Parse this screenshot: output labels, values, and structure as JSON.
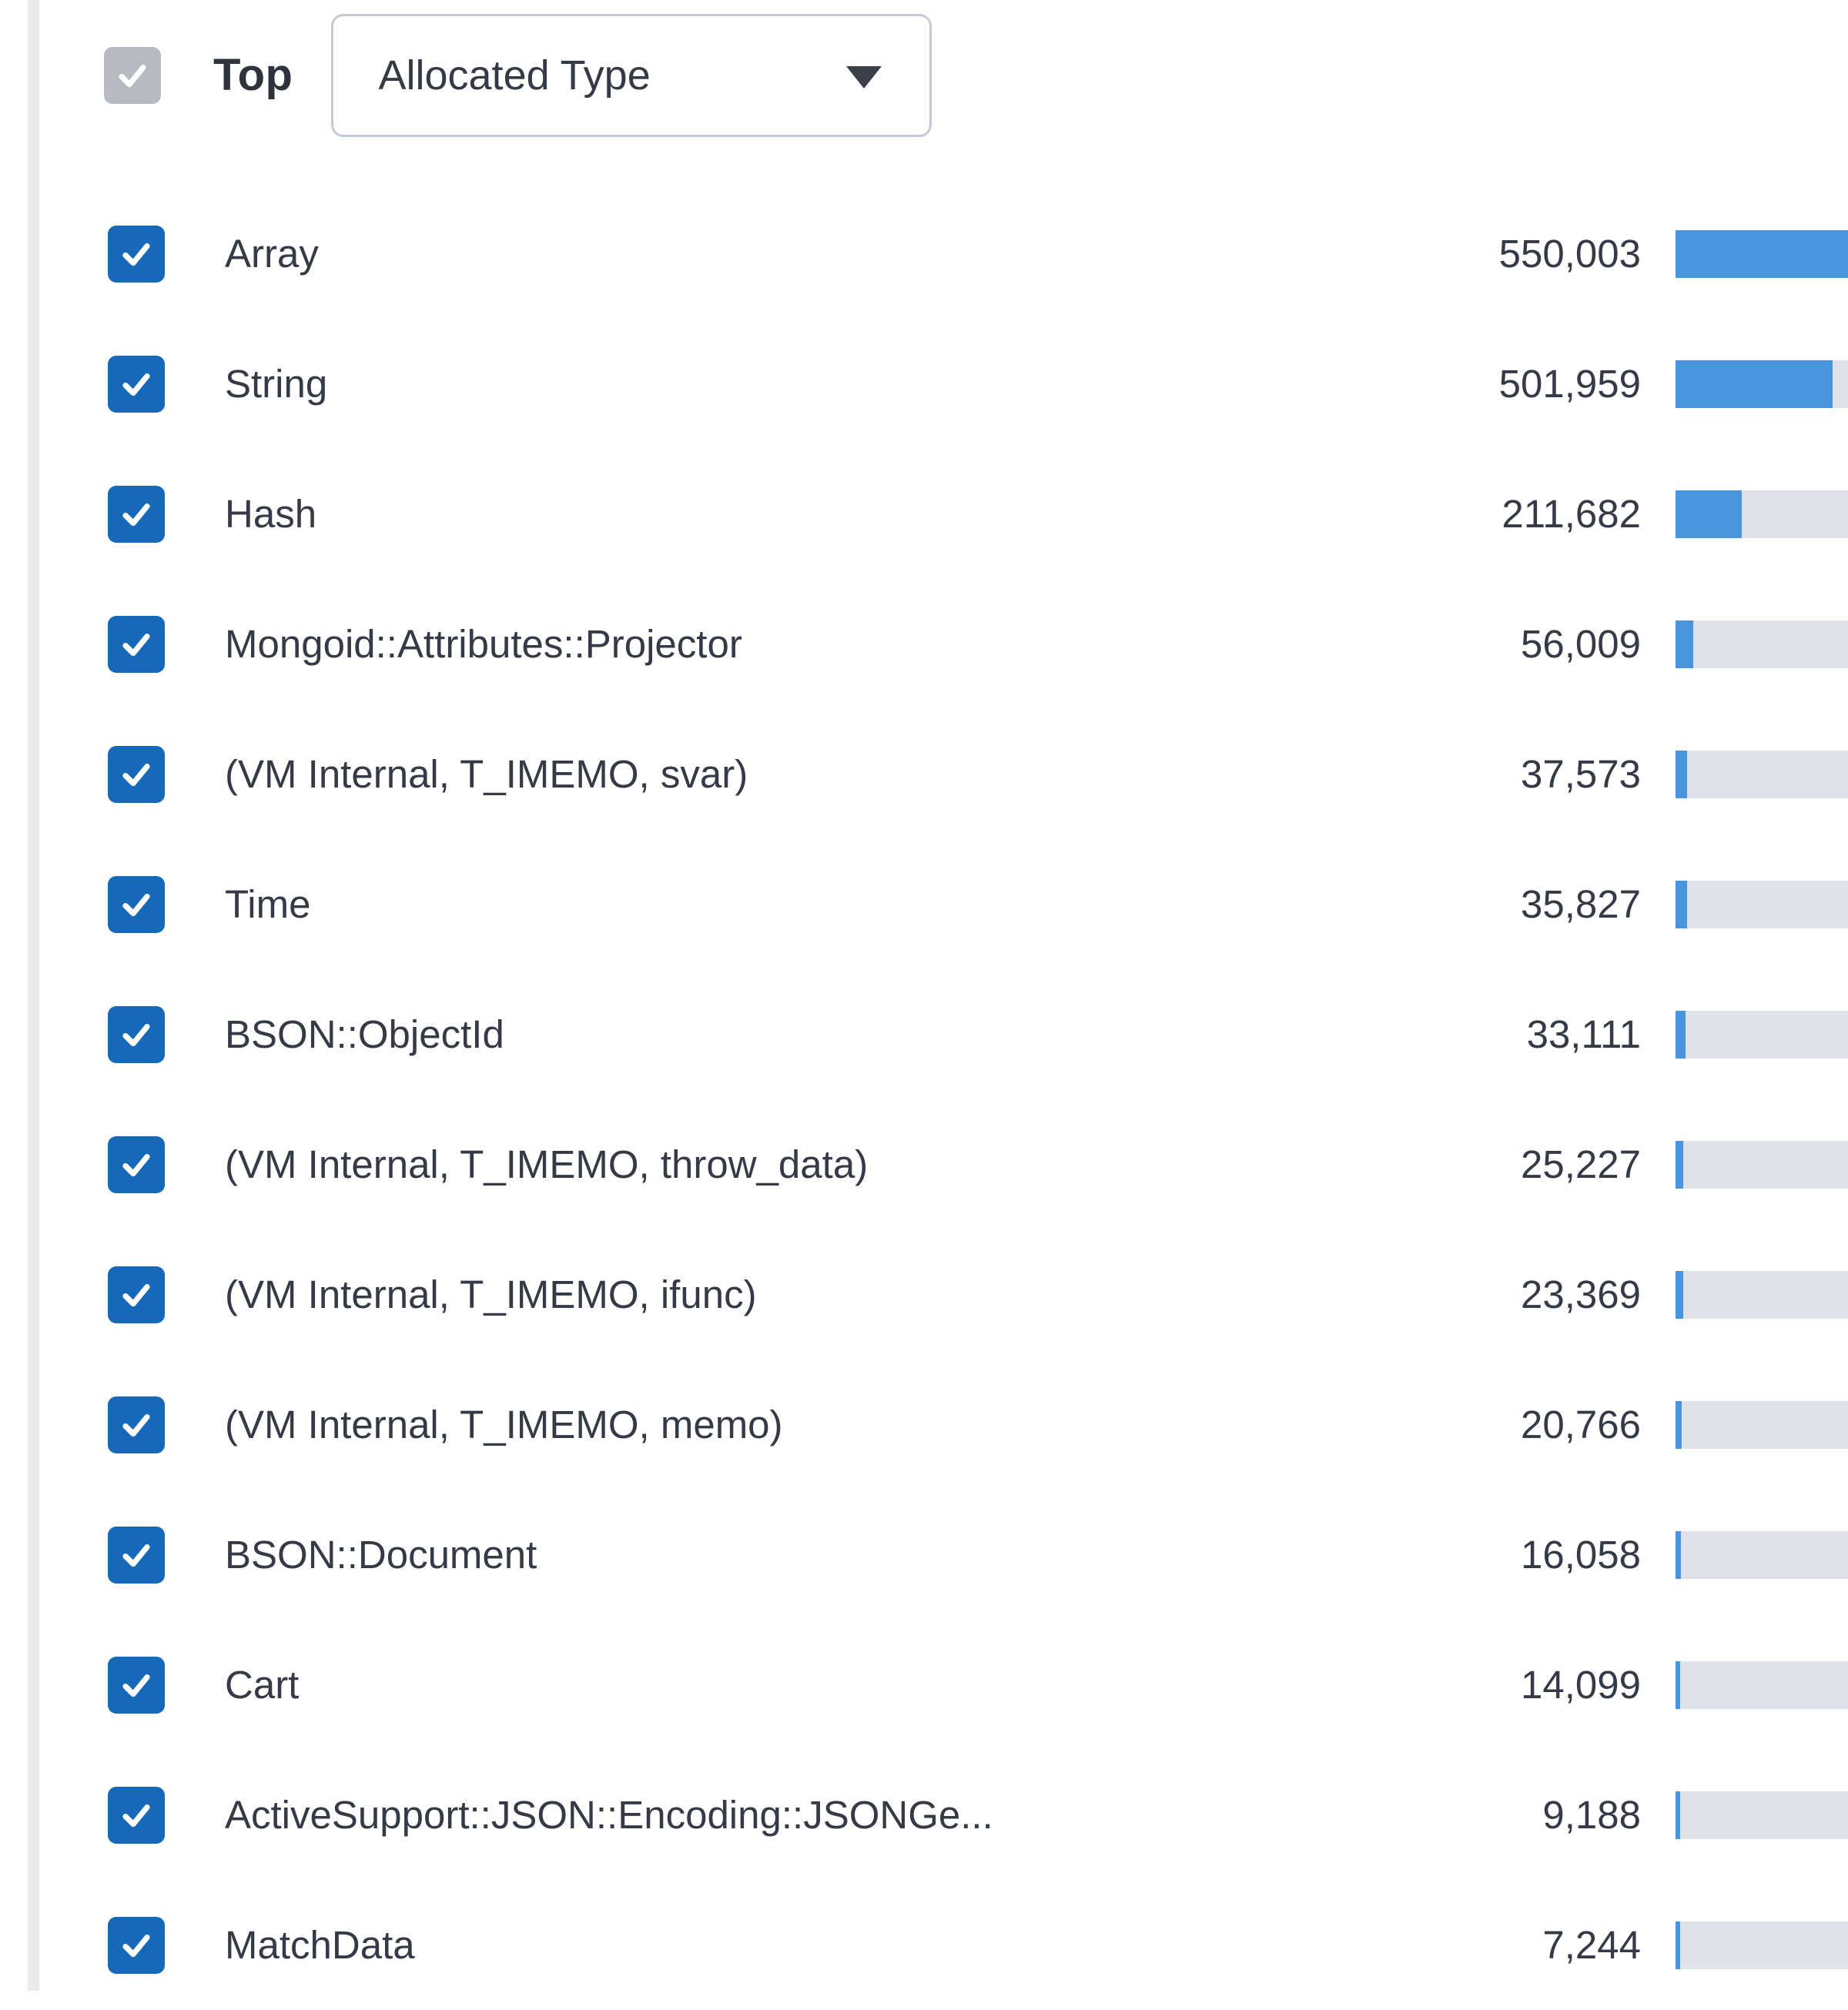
{
  "header": {
    "top_label": "Top",
    "dropdown_value": "Allocated Type",
    "top_checkbox_checked": true,
    "dropdown_icon": "chevron-down-icon"
  },
  "colors": {
    "checkbox_blue": "#1569b8",
    "checkbox_gray": "#b7bbc1",
    "bar_blue": "#4a94de",
    "track_gray": "#dfe3e8",
    "text_dark": "#343a46"
  },
  "list": {
    "max_value": 550003,
    "rows": [
      {
        "label": "Array",
        "count": "550,003",
        "value": 550003,
        "checked": true
      },
      {
        "label": "String",
        "count": "501,959",
        "value": 501959,
        "checked": true
      },
      {
        "label": "Hash",
        "count": "211,682",
        "value": 211682,
        "checked": true
      },
      {
        "label": "Mongoid::Attributes::Projector",
        "count": "56,009",
        "value": 56009,
        "checked": true
      },
      {
        "label": "(VM Internal, T_IMEMO, svar)",
        "count": "37,573",
        "value": 37573,
        "checked": true
      },
      {
        "label": "Time",
        "count": "35,827",
        "value": 35827,
        "checked": true
      },
      {
        "label": "BSON::ObjectId",
        "count": "33,111",
        "value": 33111,
        "checked": true
      },
      {
        "label": "(VM Internal, T_IMEMO, throw_data)",
        "count": "25,227",
        "value": 25227,
        "checked": true
      },
      {
        "label": "(VM Internal, T_IMEMO, ifunc)",
        "count": "23,369",
        "value": 23369,
        "checked": true
      },
      {
        "label": "(VM Internal, T_IMEMO, memo)",
        "count": "20,766",
        "value": 20766,
        "checked": true
      },
      {
        "label": "BSON::Document",
        "count": "16,058",
        "value": 16058,
        "checked": true
      },
      {
        "label": "Cart",
        "count": "14,099",
        "value": 14099,
        "checked": true
      },
      {
        "label": "ActiveSupport::JSON::Encoding::JSONGe...",
        "count": "9,188",
        "value": 9188,
        "checked": true
      },
      {
        "label": "MatchData",
        "count": "7,244",
        "value": 7244,
        "checked": true
      }
    ]
  }
}
